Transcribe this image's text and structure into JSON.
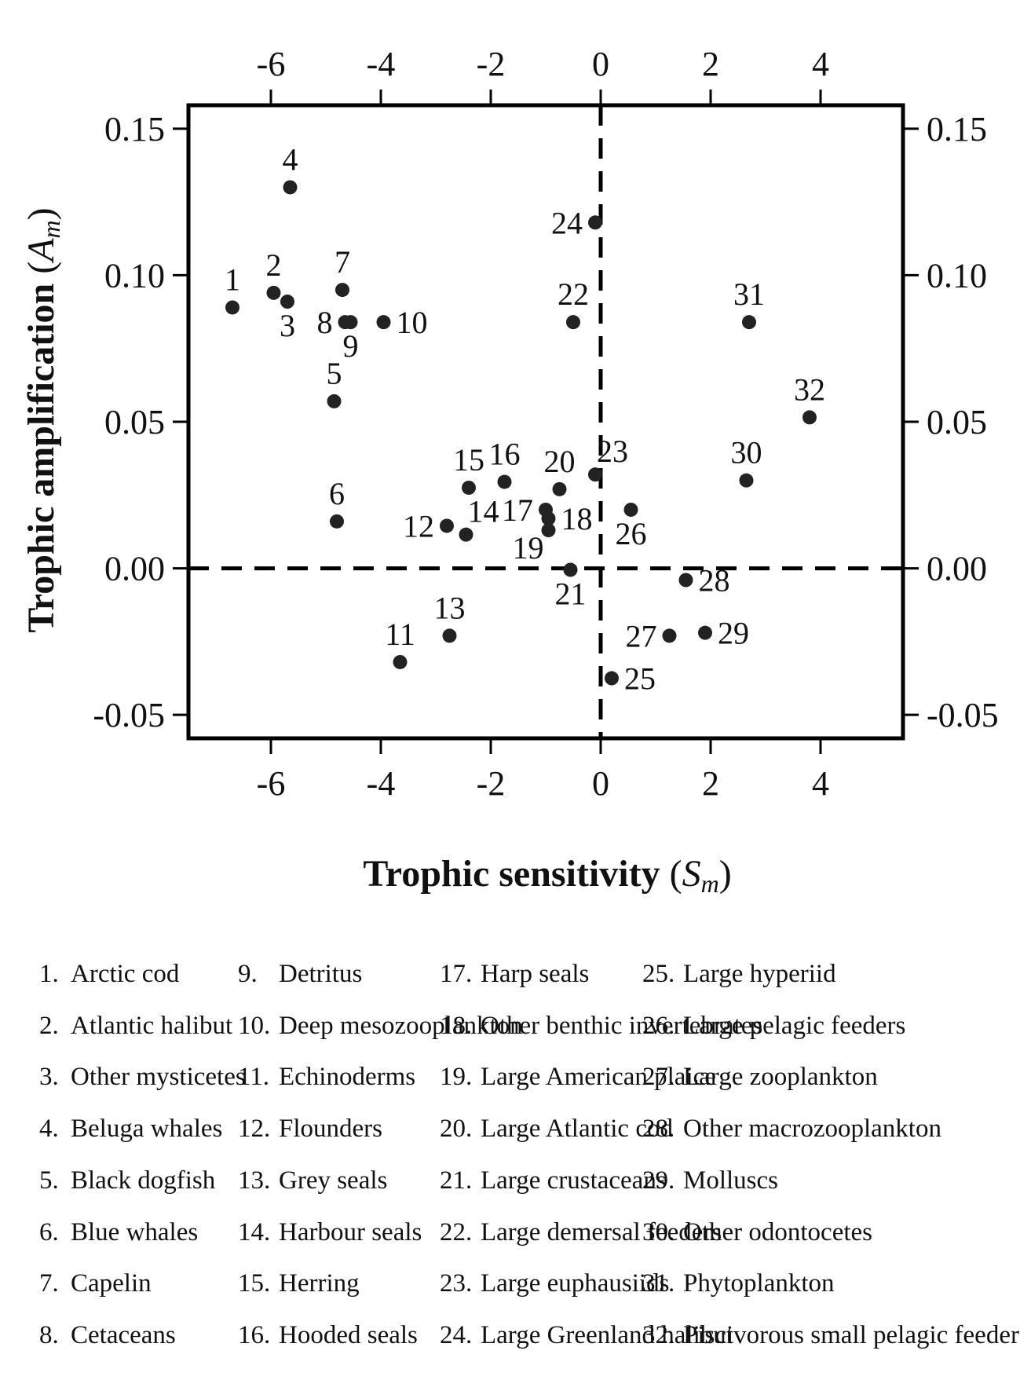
{
  "chart_data": {
    "type": "scatter",
    "xlabel": "Trophic sensitivity",
    "xlabel_symbol": "S",
    "xlabel_subscript": "m",
    "ylabel": "Trophic amplification",
    "ylabel_symbol": "A",
    "ylabel_subscript": "m",
    "xlim": [
      -7.5,
      5.5
    ],
    "ylim": [
      -0.058,
      0.158
    ],
    "x_ticks": [
      "-6",
      "-4",
      "-2",
      "0",
      "2",
      "4"
    ],
    "x_tick_values": [
      -6,
      -4,
      -2,
      0,
      2,
      4
    ],
    "y_ticks": [
      "0.15",
      "0.10",
      "0.05",
      "0.00",
      "-0.05"
    ],
    "y_tick_values": [
      0.15,
      0.1,
      0.05,
      0.0,
      -0.05
    ],
    "reference_lines": {
      "x": 0,
      "y": 0,
      "style": "dashed"
    },
    "points": [
      {
        "label": "1",
        "x": -6.7,
        "y": 0.089,
        "pos": "above"
      },
      {
        "label": "2",
        "x": -5.95,
        "y": 0.094,
        "pos": "above"
      },
      {
        "label": "3",
        "x": -5.7,
        "y": 0.091,
        "pos": "below"
      },
      {
        "label": "4",
        "x": -5.65,
        "y": 0.13,
        "pos": "above"
      },
      {
        "label": "5",
        "x": -4.85,
        "y": 0.057,
        "pos": "above"
      },
      {
        "label": "6",
        "x": -4.8,
        "y": 0.016,
        "pos": "above"
      },
      {
        "label": "7",
        "x": -4.7,
        "y": 0.095,
        "pos": "above"
      },
      {
        "label": "8",
        "x": -4.65,
        "y": 0.084,
        "pos": "left"
      },
      {
        "label": "9",
        "x": -4.55,
        "y": 0.084,
        "pos": "below"
      },
      {
        "label": "10",
        "x": -3.95,
        "y": 0.084,
        "pos": "right"
      },
      {
        "label": "11",
        "x": -3.65,
        "y": -0.032,
        "pos": "above"
      },
      {
        "label": "12",
        "x": -2.8,
        "y": 0.0145,
        "pos": "left"
      },
      {
        "label": "13",
        "x": -2.75,
        "y": -0.023,
        "pos": "above"
      },
      {
        "label": "14",
        "x": -2.45,
        "y": 0.0115,
        "pos": "aboveright"
      },
      {
        "label": "15",
        "x": -2.4,
        "y": 0.0275,
        "pos": "above"
      },
      {
        "label": "16",
        "x": -1.75,
        "y": 0.0295,
        "pos": "above"
      },
      {
        "label": "17",
        "x": -1.0,
        "y": 0.02,
        "pos": "left"
      },
      {
        "label": "18",
        "x": -0.95,
        "y": 0.017,
        "pos": "right"
      },
      {
        "label": "19",
        "x": -0.95,
        "y": 0.013,
        "pos": "belowleft"
      },
      {
        "label": "20",
        "x": -0.75,
        "y": 0.027,
        "pos": "above"
      },
      {
        "label": "21",
        "x": -0.55,
        "y": -0.0005,
        "pos": "below"
      },
      {
        "label": "22",
        "x": -0.5,
        "y": 0.084,
        "pos": "above"
      },
      {
        "label": "23",
        "x": -0.1,
        "y": 0.032,
        "pos": "aboveright"
      },
      {
        "label": "24",
        "x": -0.1,
        "y": 0.118,
        "pos": "left"
      },
      {
        "label": "25",
        "x": 0.2,
        "y": -0.0375,
        "pos": "right"
      },
      {
        "label": "26",
        "x": 0.55,
        "y": 0.02,
        "pos": "below"
      },
      {
        "label": "27",
        "x": 1.25,
        "y": -0.023,
        "pos": "left"
      },
      {
        "label": "28",
        "x": 1.55,
        "y": -0.004,
        "pos": "right"
      },
      {
        "label": "29",
        "x": 1.9,
        "y": -0.022,
        "pos": "right"
      },
      {
        "label": "30",
        "x": 2.65,
        "y": 0.03,
        "pos": "above"
      },
      {
        "label": "31",
        "x": 2.7,
        "y": 0.084,
        "pos": "above"
      },
      {
        "label": "32",
        "x": 3.8,
        "y": 0.0515,
        "pos": "above"
      }
    ]
  },
  "legend": {
    "items": [
      {
        "num": "1.",
        "name": "Arctic cod"
      },
      {
        "num": "2.",
        "name": "Atlantic halibut"
      },
      {
        "num": "3.",
        "name": "Other mysticetes"
      },
      {
        "num": "4.",
        "name": "Beluga whales"
      },
      {
        "num": "5.",
        "name": "Black dogfish"
      },
      {
        "num": "6.",
        "name": "Blue whales"
      },
      {
        "num": "7.",
        "name": "Capelin"
      },
      {
        "num": "8.",
        "name": "Cetaceans"
      },
      {
        "num": "9.",
        "name": "Detritus"
      },
      {
        "num": "10.",
        "name": "Deep mesozooplankton"
      },
      {
        "num": "11.",
        "name": "Echinoderms"
      },
      {
        "num": "12.",
        "name": "Flounders"
      },
      {
        "num": "13.",
        "name": "Grey seals"
      },
      {
        "num": "14.",
        "name": "Harbour seals"
      },
      {
        "num": "15.",
        "name": "Herring"
      },
      {
        "num": "16.",
        "name": "Hooded seals"
      },
      {
        "num": "17.",
        "name": "Harp seals"
      },
      {
        "num": "18.",
        "name": "Other benthic invertebrates"
      },
      {
        "num": "19.",
        "name": "Large American plaice"
      },
      {
        "num": "20.",
        "name": "Large Atlantic cod"
      },
      {
        "num": "21.",
        "name": "Large crustaceans"
      },
      {
        "num": "22.",
        "name": "Large demersal feeders"
      },
      {
        "num": "23.",
        "name": "Large euphausiids"
      },
      {
        "num": "24.",
        "name": "Large Greenland halibut"
      },
      {
        "num": "25.",
        "name": "Large hyperiid"
      },
      {
        "num": "26.",
        "name": "Large pelagic feeders"
      },
      {
        "num": "27.",
        "name": "Large zooplankton"
      },
      {
        "num": "28.",
        "name": "Other macrozooplankton"
      },
      {
        "num": "29.",
        "name": "Molluscs"
      },
      {
        "num": "30.",
        "name": "Other odontocetes"
      },
      {
        "num": "31.",
        "name": "Phytoplankton"
      },
      {
        "num": "32.",
        "name": "Piscivorous small pelagic feeders"
      }
    ]
  }
}
